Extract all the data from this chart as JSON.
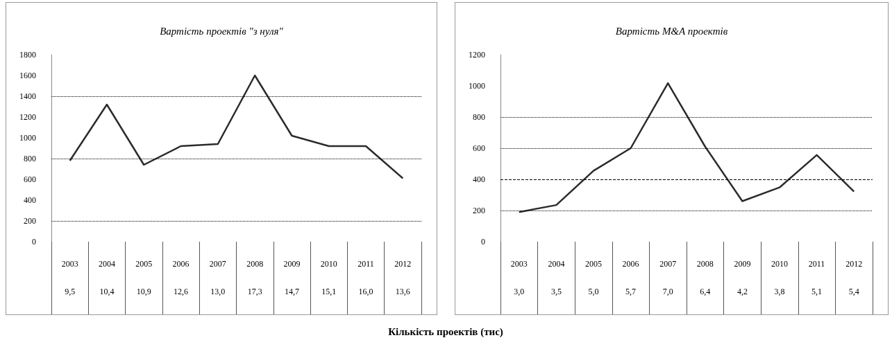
{
  "chart_data": [
    {
      "type": "line",
      "title": "Вартість проектів \"з нуля\"",
      "categories": [
        "2003",
        "2004",
        "2005",
        "2006",
        "2007",
        "2008",
        "2009",
        "2010",
        "2011",
        "2012"
      ],
      "values": [
        780,
        1320,
        740,
        920,
        940,
        1600,
        1020,
        920,
        920,
        610
      ],
      "color": "#2b2b2b",
      "ylim": [
        0,
        1800
      ],
      "yticks": [
        0,
        200,
        400,
        600,
        800,
        1000,
        1200,
        1400,
        1600,
        1800
      ],
      "grid": false,
      "marker": "none",
      "line_style": "solid",
      "ref_lines": [
        {
          "axis": "y",
          "value": 200,
          "label": null,
          "line_style": "dotted"
        },
        {
          "axis": "y",
          "value": 800,
          "label": null,
          "line_style": "dotted"
        },
        {
          "axis": "y",
          "value": 1400,
          "label": null,
          "line_style": "dotted"
        }
      ],
      "annotations": [
        "9,5",
        "10,4",
        "10,9",
        "12,6",
        "13,0",
        "17,3",
        "14,7",
        "15,1",
        "16,0",
        "13,6",
        "Кількість проектів (тис)"
      ]
    },
    {
      "type": "line",
      "title": "Вартість M&A проектів",
      "categories": [
        "2003",
        "2004",
        "2005",
        "2006",
        "2007",
        "2008",
        "2009",
        "2010",
        "2011",
        "2012"
      ],
      "values": [
        190,
        235,
        455,
        600,
        1017,
        610,
        260,
        348,
        556,
        322
      ],
      "color": "#2b2b2b",
      "ylim": [
        0,
        1200
      ],
      "yticks": [
        0,
        200,
        400,
        600,
        800,
        1000,
        1200
      ],
      "grid": false,
      "marker": "none",
      "line_style": "solid",
      "ref_lines": [
        {
          "axis": "y",
          "value": 200,
          "label": null,
          "line_style": "dotted"
        },
        {
          "axis": "y",
          "value": 400,
          "label": null,
          "line_style": "dashed"
        },
        {
          "axis": "y",
          "value": 600,
          "label": null,
          "line_style": "dotted"
        },
        {
          "axis": "y",
          "value": 800,
          "label": null,
          "line_style": "dotted"
        }
      ],
      "annotations": [
        "3,0",
        "3,5",
        "5,0",
        "5,7",
        "7,0",
        "6,4",
        "4,2",
        "3,8",
        "5,1",
        "5,4"
      ]
    }
  ]
}
